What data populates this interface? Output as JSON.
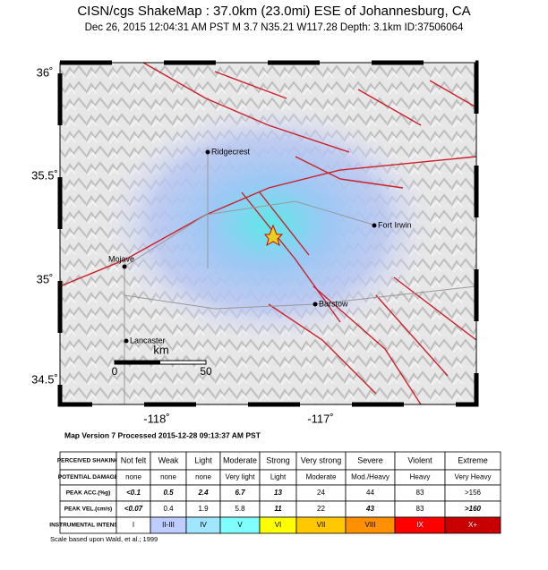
{
  "header": {
    "title": "CISN/cgs ShakeMap : 37.0km (23.0mi) ESE of Johannesburg, CA",
    "subtitle": "Dec 26, 2015 12:04:31 AM PST   M 3.7   N35.21 W117.28   Depth: 3.1km   ID:37506064"
  },
  "map": {
    "lat_labels": [
      "36˚",
      "35.5˚",
      "35˚",
      "34.5˚"
    ],
    "lon_labels": [
      "-118˚",
      "-117˚"
    ],
    "cities": [
      "Ridgecrest",
      "Fort Irwin",
      "Mojave",
      "Barstow",
      "Lancaster"
    ],
    "scale": {
      "start": "0",
      "end": "50",
      "unit": "km"
    }
  },
  "version": "Map Version 7 Processed 2015-12-28 09:13:37 AM PST",
  "table": {
    "rows": [
      [
        "PERCEIVED SHAKING",
        "Not felt",
        "Weak",
        "Light",
        "Moderate",
        "Strong",
        "Very strong",
        "Severe",
        "Violent",
        "Extreme"
      ],
      [
        "POTENTIAL DAMAGE",
        "none",
        "none",
        "none",
        "Very light",
        "Light",
        "Moderate",
        "Mod./Heavy",
        "Heavy",
        "Very Heavy"
      ],
      [
        "PEAK ACC.(%g)",
        "<0.1",
        "0.5",
        "2.4",
        "6.7",
        "13",
        "24",
        "44",
        "83",
        ">156"
      ],
      [
        "PEAK VEL.(cm/s)",
        "<0.07",
        "0.4",
        "1.9",
        "5.8",
        "11",
        "22",
        "43",
        "83",
        ">160"
      ],
      [
        "INSTRUMENTAL INTENSITY",
        "I",
        "II-III",
        "IV",
        "V",
        "VI",
        "VII",
        "VIII",
        "IX",
        "X+"
      ]
    ],
    "intensity_colors": [
      "#ffffff",
      "#bfccff",
      "#a0e6ff",
      "#80ffff",
      "#ffff00",
      "#ffc800",
      "#ff9100",
      "#ff0000",
      "#c80000"
    ]
  },
  "footer": "Scale based upon Wald, et al.; 1999"
}
